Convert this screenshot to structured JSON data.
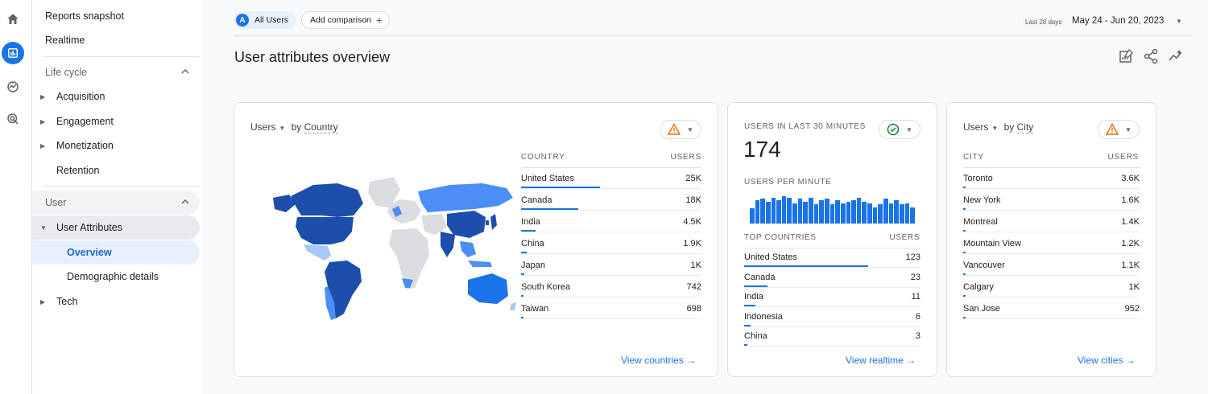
{
  "rail": {
    "icons": [
      "home-icon",
      "reports-icon",
      "explore-icon",
      "advertising-icon"
    ]
  },
  "nav": {
    "reports_snapshot": "Reports snapshot",
    "realtime": "Realtime",
    "lifecycle": "Life cycle",
    "acquisition": "Acquisition",
    "engagement": "Engagement",
    "monetization": "Monetization",
    "retention": "Retention",
    "user": "User",
    "user_attributes": "User Attributes",
    "overview": "Overview",
    "demographic_details": "Demographic details",
    "tech": "Tech"
  },
  "topbar": {
    "all_users_avatar": "A",
    "all_users": "All Users",
    "add_comparison": "Add comparison",
    "date_small": "Last 28 days",
    "date_range": "May 24 - Jun 20, 2023"
  },
  "page": {
    "title": "User attributes overview"
  },
  "country_card": {
    "metric": "Users",
    "by": "by",
    "dimension": "Country",
    "col_country": "COUNTRY",
    "col_users": "USERS",
    "rows": [
      {
        "name": "United States",
        "value": "25K",
        "share": 1.0
      },
      {
        "name": "Canada",
        "value": "18K",
        "share": 0.72
      },
      {
        "name": "India",
        "value": "4.5K",
        "share": 0.18
      },
      {
        "name": "China",
        "value": "1.9K",
        "share": 0.076
      },
      {
        "name": "Japan",
        "value": "1K",
        "share": 0.04
      },
      {
        "name": "South Korea",
        "value": "742",
        "share": 0.03
      },
      {
        "name": "Taiwan",
        "value": "698",
        "share": 0.028
      }
    ],
    "link": "View countries"
  },
  "realtime_card": {
    "title": "USERS IN LAST 30 MINUTES",
    "count": "174",
    "per_minute": "USERS PER MINUTE",
    "spark": [
      0.55,
      0.85,
      0.9,
      0.8,
      0.95,
      0.85,
      1.0,
      0.95,
      0.75,
      0.9,
      0.8,
      0.95,
      0.7,
      0.85,
      0.9,
      0.7,
      0.85,
      0.75,
      0.8,
      0.85,
      0.95,
      0.8,
      0.75,
      0.6,
      0.7,
      0.9,
      0.75,
      0.85,
      0.7,
      0.75,
      0.6
    ],
    "col_country": "TOP COUNTRIES",
    "col_users": "USERS",
    "rows": [
      {
        "name": "United States",
        "value": "123",
        "share": 1.0
      },
      {
        "name": "Canada",
        "value": "23",
        "share": 0.19
      },
      {
        "name": "India",
        "value": "11",
        "share": 0.09
      },
      {
        "name": "Indonesia",
        "value": "6",
        "share": 0.05
      },
      {
        "name": "China",
        "value": "3",
        "share": 0.025
      }
    ],
    "link": "View realtime"
  },
  "city_card": {
    "metric": "Users",
    "by": "by",
    "dimension": "City",
    "col_city": "CITY",
    "col_users": "USERS",
    "rows": [
      {
        "name": "Toronto",
        "value": "3.6K",
        "share": 1.0
      },
      {
        "name": "New York",
        "value": "1.6K",
        "share": 0.44
      },
      {
        "name": "Montreal",
        "value": "1.4K",
        "share": 0.39
      },
      {
        "name": "Mountain View",
        "value": "1.2K",
        "share": 0.33
      },
      {
        "name": "Vancouver",
        "value": "1.1K",
        "share": 0.3
      },
      {
        "name": "Calgary",
        "value": "1K",
        "share": 0.28
      },
      {
        "name": "San Jose",
        "value": "952",
        "share": 0.26
      }
    ],
    "link": "View cities"
  },
  "colors": {
    "accent": "#1a73e8",
    "map_dark": "#1c4fab",
    "map_mid": "#4c8df6",
    "map_light": "#a8c7fa",
    "map_none": "#dadce0",
    "warning": "#e8710a",
    "ok": "#188038"
  }
}
